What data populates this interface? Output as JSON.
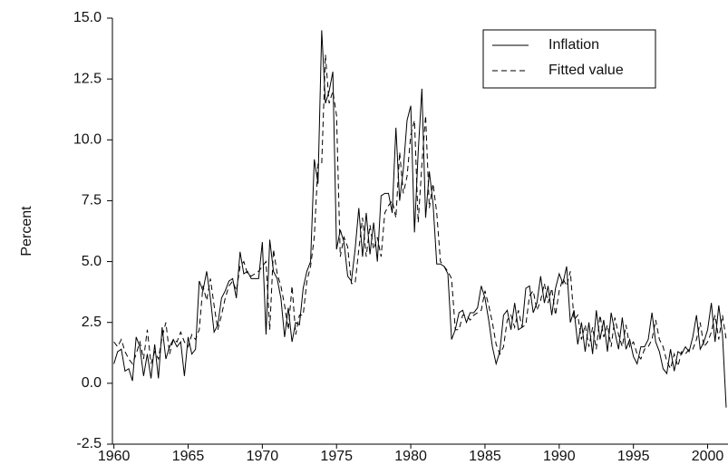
{
  "chart_data": {
    "type": "line",
    "y_label": "Percent",
    "legend": "top-right",
    "xlim": [
      1959.9,
      2001.25
    ],
    "xticks": [
      1960,
      1965,
      1970,
      1975,
      1980,
      1985,
      1990,
      1995,
      2000
    ],
    "ylim": [
      -2.5,
      15
    ],
    "yticks": [
      -2.5,
      {
        "value": 0,
        "label": "0.0"
      },
      2.5,
      {
        "value": 5,
        "label": "5.0"
      },
      7.5,
      {
        "value": 10,
        "label": "10.0"
      },
      12.5,
      {
        "value": 15,
        "label": "15.0"
      }
    ],
    "x": [
      1960,
      1960.25,
      1960.5,
      1960.75,
      1961,
      1961.25,
      1961.5,
      1961.75,
      1962,
      1962.25,
      1962.5,
      1962.75,
      1963,
      1963.25,
      1963.5,
      1963.75,
      1964,
      1964.25,
      1964.5,
      1964.75,
      1965,
      1965.25,
      1965.5,
      1965.75,
      1966,
      1966.25,
      1966.5,
      1966.75,
      1967,
      1967.25,
      1967.5,
      1967.75,
      1968,
      1968.25,
      1968.5,
      1968.75,
      1969,
      1969.25,
      1969.5,
      1969.75,
      1970,
      1970.25,
      1970.5,
      1970.75,
      1971,
      1971.25,
      1971.5,
      1971.75,
      1972,
      1972.25,
      1972.5,
      1972.75,
      1973,
      1973.25,
      1973.5,
      1973.75,
      1974,
      1974.25,
      1974.5,
      1974.75,
      1975,
      1975.25,
      1975.5,
      1975.75,
      1976,
      1976.25,
      1976.5,
      1976.75,
      1977,
      1977.25,
      1977.5,
      1977.75,
      1978,
      1978.25,
      1978.5,
      1978.75,
      1979,
      1979.25,
      1979.5,
      1979.75,
      1980,
      1980.25,
      1980.5,
      1980.75,
      1981,
      1981.25,
      1981.5,
      1981.75,
      1982,
      1982.25,
      1982.5,
      1982.75,
      1983,
      1983.25,
      1983.5,
      1983.75,
      1984,
      1984.25,
      1984.5,
      1984.75,
      1985,
      1985.25,
      1985.5,
      1985.75,
      1986,
      1986.25,
      1986.5,
      1986.75,
      1987,
      1987.25,
      1987.5,
      1987.75,
      1988,
      1988.25,
      1988.5,
      1988.75,
      1989,
      1989.25,
      1989.5,
      1989.75,
      1990,
      1990.25,
      1990.5,
      1990.75,
      1991,
      1991.25,
      1991.5,
      1991.75,
      1992,
      1992.25,
      1992.5,
      1992.75,
      1993,
      1993.25,
      1993.5,
      1993.75,
      1994,
      1994.25,
      1994.5,
      1994.75,
      1995,
      1995.25,
      1995.5,
      1995.75,
      1996,
      1996.25,
      1996.5,
      1996.75,
      1997,
      1997.25,
      1997.5,
      1997.75,
      1998,
      1998.25,
      1998.5,
      1998.75,
      1999,
      1999.25,
      1999.5,
      1999.75,
      2000,
      2000.25,
      2000.5,
      2000.75,
      2001,
      2001.25
    ],
    "series": [
      {
        "name": "Inflation",
        "color": "#000000",
        "style": "solid",
        "values": [
          0.8,
          1.3,
          1.4,
          0.5,
          0.6,
          0.1,
          1.9,
          1.5,
          0.3,
          1.2,
          0.2,
          1.6,
          0.2,
          2.3,
          1.0,
          1.5,
          1.8,
          1.5,
          1.7,
          0.3,
          1.9,
          1.2,
          1.4,
          4.2,
          3.8,
          4.6,
          3.5,
          2.1,
          2.4,
          3.5,
          3.8,
          4.2,
          4.3,
          3.5,
          5.4,
          4.5,
          4.6,
          4.3,
          4.3,
          4.3,
          5.8,
          2.0,
          5.9,
          4.6,
          4.3,
          3.5,
          1.9,
          3.1,
          1.7,
          2.5,
          2.4,
          3.9,
          4.6,
          5.0,
          9.2,
          8.2,
          14.5,
          11.5,
          12.0,
          12.8,
          5.5,
          6.3,
          5.8,
          4.4,
          4.2,
          5.5,
          7.2,
          5.2,
          7.0,
          5.3,
          6.6,
          5.0,
          7.7,
          7.8,
          7.8,
          7.0,
          10.5,
          7.5,
          8.8,
          10.8,
          11.4,
          6.2,
          9.5,
          12.1,
          6.8,
          8.7,
          7.4,
          4.9,
          4.9,
          4.8,
          4.5,
          1.8,
          2.2,
          2.9,
          3.0,
          2.5,
          2.9,
          2.9,
          3.1,
          4.0,
          3.5,
          2.6,
          1.5,
          0.8,
          1.3,
          2.8,
          3.0,
          2.2,
          3.3,
          2.2,
          2.3,
          3.9,
          4.0,
          2.9,
          3.3,
          4.4,
          3.3,
          4.0,
          2.8,
          3.9,
          4.5,
          4.1,
          4.8,
          2.5,
          3.0,
          1.6,
          2.5,
          1.3,
          2.5,
          1.2,
          3.0,
          1.8,
          2.6,
          1.3,
          2.9,
          2.1,
          1.4,
          2.7,
          1.4,
          1.8,
          1.1,
          0.8,
          1.5,
          1.5,
          1.8,
          2.9,
          1.7,
          1.3,
          0.6,
          0.4,
          1.4,
          0.5,
          1.3,
          1.2,
          1.5,
          1.3,
          1.9,
          2.8,
          1.4,
          1.7,
          2.2,
          3.3,
          1.7,
          3.2,
          2.0,
          -1.0
        ]
      },
      {
        "name": "Fitted value",
        "color": "#000000",
        "style": "dashed",
        "values": [
          1.7,
          1.5,
          1.8,
          1.3,
          1.0,
          0.8,
          1.2,
          1.7,
          1.0,
          2.2,
          0.8,
          1.3,
          1.0,
          1.9,
          2.5,
          1.2,
          1.8,
          1.7,
          2.1,
          1.7,
          1.5,
          2.0,
          1.8,
          2.2,
          4.0,
          3.4,
          4.3,
          3.2,
          2.2,
          2.8,
          3.5,
          4.0,
          4.2,
          3.8,
          4.8,
          5.0,
          4.5,
          4.4,
          4.5,
          4.6,
          4.8,
          5.0,
          2.2,
          5.5,
          4.5,
          4.0,
          3.2,
          2.2,
          4.0,
          2.0,
          2.8,
          2.8,
          4.2,
          4.8,
          6.0,
          9.0,
          9.0,
          13.5,
          11.5,
          12.0,
          11.0,
          5.2,
          6.0,
          5.6,
          4.1,
          4.1,
          5.5,
          6.8,
          5.2,
          6.5,
          5.5,
          6.0,
          5.2,
          7.0,
          7.3,
          7.5,
          6.8,
          9.5,
          7.8,
          8.5,
          10.2,
          10.8,
          6.6,
          9.0,
          11.0,
          7.2,
          8.2,
          7.0,
          5.0,
          4.8,
          4.6,
          4.3,
          2.2,
          2.2,
          2.8,
          2.8,
          2.6,
          2.8,
          2.9,
          3.0,
          3.8,
          3.2,
          2.5,
          1.6,
          1.2,
          1.5,
          2.6,
          2.8,
          2.3,
          3.0,
          2.3,
          2.4,
          3.6,
          3.8,
          3.0,
          3.4,
          4.1,
          3.3,
          3.9,
          2.8,
          3.8,
          4.3,
          4.0,
          4.6,
          2.6,
          2.8,
          1.8,
          2.4,
          1.5,
          2.3,
          1.4,
          2.8,
          1.9,
          2.4,
          1.5,
          2.7,
          2.0,
          1.5,
          2.4,
          1.5,
          1.7,
          1.2,
          1.0,
          1.4,
          1.5,
          1.8,
          2.6,
          1.8,
          1.5,
          0.9,
          0.6,
          1.2,
          0.7,
          1.3,
          1.2,
          1.4,
          1.4,
          1.8,
          2.5,
          1.5,
          1.7,
          2.1,
          2.8,
          1.8,
          2.8,
          1.8
        ]
      }
    ]
  }
}
